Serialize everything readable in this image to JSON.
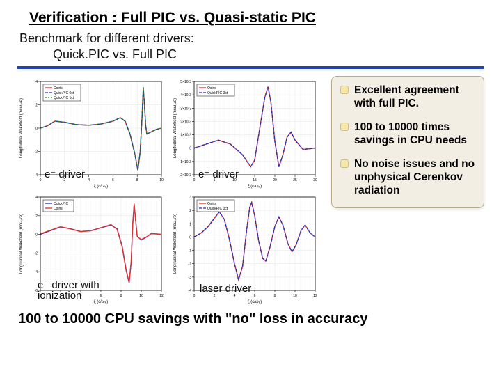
{
  "title": "Verification : Full PIC vs. Quasi-static PIC",
  "subtitle_line1": "Benchmark for different drivers:",
  "subtitle_line2": "Quick.PIC vs. Full PIC",
  "footer": "100 to 10000 CPU savings with \"no\" loss in accuracy",
  "bullets": {
    "b1": "Excellent agreement with full PIC.",
    "b2": "100 to 10000 times savings in CPU needs",
    "b3": "No noise issues and no unphysical Cerenkov radiation"
  },
  "chart_labels": {
    "c1": "e⁻ driver",
    "c2": "e⁺ driver",
    "c3": "e⁻ driver with ionization",
    "c4": "laser driver"
  },
  "colors": {
    "osiris": "#e03030",
    "quickpic": "#2030c0",
    "quickpic_alt": "#108030",
    "plot_bg": "#ffffff",
    "grid": "#e5e5e5"
  },
  "axes_common": {
    "title_fontsize": 6,
    "tick_fontsize": 5,
    "xlabel": "ξ (c/ωₚ)",
    "ylabel": "Longitudinal Wakefield (mcωₚ/e)"
  },
  "chart1": {
    "xlim": [
      0,
      10
    ],
    "ylim": [
      -4,
      4
    ],
    "xticks": [
      0,
      2,
      4,
      6,
      8,
      10
    ],
    "yticks": [
      -4,
      -2,
      0,
      2,
      4
    ],
    "legend": [
      "Osiris",
      "QuickPIC 0ct",
      "QuickPIC 1ct"
    ],
    "series": [
      {
        "color": "#e03030",
        "dash": "",
        "pts": [
          [
            0,
            0
          ],
          [
            0.6,
            0.2
          ],
          [
            1.2,
            0.6
          ],
          [
            2.0,
            0.5
          ],
          [
            3.0,
            0.3
          ],
          [
            4.0,
            0.25
          ],
          [
            5.0,
            0.35
          ],
          [
            6.0,
            0.6
          ],
          [
            6.6,
            0.9
          ],
          [
            7.0,
            0.6
          ],
          [
            7.4,
            -0.5
          ],
          [
            7.8,
            -2.2
          ],
          [
            8.05,
            -3.6
          ],
          [
            8.25,
            -2.0
          ],
          [
            8.4,
            1.0
          ],
          [
            8.5,
            3.5
          ],
          [
            8.6,
            2.0
          ],
          [
            8.7,
            0.2
          ],
          [
            8.8,
            -0.5
          ],
          [
            9.2,
            -0.3
          ],
          [
            9.6,
            -0.1
          ],
          [
            10,
            0
          ]
        ]
      },
      {
        "color": "#2030c0",
        "dash": "4 2",
        "pts": [
          [
            0,
            0
          ],
          [
            0.6,
            0.2
          ],
          [
            1.2,
            0.6
          ],
          [
            2.0,
            0.5
          ],
          [
            3.0,
            0.3
          ],
          [
            4.0,
            0.25
          ],
          [
            5.0,
            0.35
          ],
          [
            6.0,
            0.6
          ],
          [
            6.6,
            0.9
          ],
          [
            7.0,
            0.6
          ],
          [
            7.4,
            -0.5
          ],
          [
            7.8,
            -2.2
          ],
          [
            8.05,
            -3.6
          ],
          [
            8.25,
            -2.0
          ],
          [
            8.4,
            1.0
          ],
          [
            8.5,
            3.5
          ],
          [
            8.6,
            2.0
          ],
          [
            8.7,
            0.2
          ],
          [
            8.8,
            -0.5
          ],
          [
            9.2,
            -0.3
          ],
          [
            9.6,
            -0.1
          ],
          [
            10,
            0
          ]
        ]
      },
      {
        "color": "#108030",
        "dash": "2 2",
        "pts": [
          [
            0,
            0
          ],
          [
            0.6,
            0.2
          ],
          [
            1.2,
            0.6
          ],
          [
            2.0,
            0.5
          ],
          [
            3.0,
            0.3
          ],
          [
            4.0,
            0.25
          ],
          [
            5.0,
            0.35
          ],
          [
            6.0,
            0.6
          ],
          [
            6.6,
            0.9
          ],
          [
            7.0,
            0.6
          ],
          [
            7.4,
            -0.5
          ],
          [
            7.8,
            -2.2
          ],
          [
            8.05,
            -3.6
          ],
          [
            8.25,
            -2.0
          ],
          [
            8.4,
            1.0
          ],
          [
            8.5,
            3.5
          ],
          [
            8.6,
            2.0
          ],
          [
            8.7,
            0.2
          ],
          [
            8.8,
            -0.5
          ],
          [
            9.2,
            -0.3
          ],
          [
            9.6,
            -0.1
          ],
          [
            10,
            0
          ]
        ]
      }
    ]
  },
  "chart2": {
    "xlim": [
      0,
      30
    ],
    "ylim": [
      -0.002,
      0.005
    ],
    "xticks": [
      0,
      5,
      10,
      15,
      20,
      25,
      30
    ],
    "yticks": [
      -0.002,
      -0.001,
      0,
      0.001,
      0.002,
      0.003,
      0.004,
      0.005
    ],
    "legend": [
      "Osiris",
      "QuickPIC 0ct"
    ],
    "series": [
      {
        "color": "#e03030",
        "dash": "",
        "pts": [
          [
            0,
            0
          ],
          [
            3,
            0.0003
          ],
          [
            6,
            0.0006
          ],
          [
            9,
            0.0003
          ],
          [
            12,
            -0.0005
          ],
          [
            14,
            -0.0014
          ],
          [
            15,
            -0.0009
          ],
          [
            16,
            0.001
          ],
          [
            17.5,
            0.0038
          ],
          [
            18.3,
            0.0046
          ],
          [
            19,
            0.0035
          ],
          [
            20,
            0.0005
          ],
          [
            21,
            -0.0014
          ],
          [
            22,
            -0.0005
          ],
          [
            23,
            0.0008
          ],
          [
            24,
            0.0012
          ],
          [
            25,
            0.0006
          ],
          [
            27,
            -0.0001
          ],
          [
            30,
            0
          ]
        ]
      },
      {
        "color": "#2030c0",
        "dash": "4 2",
        "pts": [
          [
            0,
            0
          ],
          [
            3,
            0.0003
          ],
          [
            6,
            0.0006
          ],
          [
            9,
            0.0003
          ],
          [
            12,
            -0.0005
          ],
          [
            14,
            -0.0014
          ],
          [
            15,
            -0.0009
          ],
          [
            16,
            0.001
          ],
          [
            17.5,
            0.0038
          ],
          [
            18.3,
            0.0046
          ],
          [
            19,
            0.0035
          ],
          [
            20,
            0.0005
          ],
          [
            21,
            -0.0014
          ],
          [
            22,
            -0.0005
          ],
          [
            23,
            0.0008
          ],
          [
            24,
            0.0012
          ],
          [
            25,
            0.0006
          ],
          [
            27,
            -0.0001
          ],
          [
            30,
            0
          ]
        ]
      }
    ]
  },
  "chart3": {
    "xlim": [
      0,
      12
    ],
    "ylim": [
      -6,
      4
    ],
    "xticks": [
      0,
      2,
      4,
      6,
      8,
      10,
      12
    ],
    "yticks": [
      -6,
      -4,
      -2,
      0,
      2,
      4
    ],
    "legend": [
      "QuickPIC",
      "Osiris"
    ],
    "series": [
      {
        "color": "#2030c0",
        "dash": "",
        "pts": [
          [
            0,
            0
          ],
          [
            1,
            0.4
          ],
          [
            2,
            0.8
          ],
          [
            3,
            0.6
          ],
          [
            4,
            0.3
          ],
          [
            5,
            0.4
          ],
          [
            6,
            0.7
          ],
          [
            7,
            1.0
          ],
          [
            7.6,
            0.6
          ],
          [
            8.1,
            -1.2
          ],
          [
            8.5,
            -3.8
          ],
          [
            8.8,
            -5.2
          ],
          [
            9.0,
            -3.0
          ],
          [
            9.15,
            1.0
          ],
          [
            9.3,
            3.2
          ],
          [
            9.45,
            1.5
          ],
          [
            9.6,
            -0.2
          ],
          [
            10,
            -0.6
          ],
          [
            10.5,
            -0.3
          ],
          [
            11,
            0.1
          ],
          [
            12,
            0
          ]
        ]
      },
      {
        "color": "#e03030",
        "dash": "",
        "pts": [
          [
            0,
            0.05
          ],
          [
            1,
            0.45
          ],
          [
            2,
            0.82
          ],
          [
            3,
            0.58
          ],
          [
            4,
            0.28
          ],
          [
            5,
            0.38
          ],
          [
            6,
            0.72
          ],
          [
            7,
            1.05
          ],
          [
            7.6,
            0.55
          ],
          [
            8.1,
            -1.3
          ],
          [
            8.5,
            -3.9
          ],
          [
            8.8,
            -5.1
          ],
          [
            9.0,
            -2.9
          ],
          [
            9.15,
            1.1
          ],
          [
            9.3,
            3.3
          ],
          [
            9.45,
            1.4
          ],
          [
            9.6,
            -0.25
          ],
          [
            10,
            -0.55
          ],
          [
            10.5,
            -0.28
          ],
          [
            11,
            0.08
          ],
          [
            12,
            0
          ]
        ]
      }
    ]
  },
  "chart4": {
    "xlim": [
      0,
      12
    ],
    "ylim": [
      -4,
      3
    ],
    "xticks": [
      0,
      2,
      4,
      6,
      8,
      10,
      12
    ],
    "yticks": [
      -4,
      -3,
      -2,
      -1,
      0,
      1,
      2,
      3
    ],
    "legend": [
      "Osiris",
      "QuickPIC 0ct"
    ],
    "series": [
      {
        "color": "#e03030",
        "dash": "",
        "pts": [
          [
            0,
            0
          ],
          [
            0.7,
            0.3
          ],
          [
            1.4,
            0.8
          ],
          [
            2.0,
            1.4
          ],
          [
            2.5,
            1.9
          ],
          [
            3.0,
            1.3
          ],
          [
            3.5,
            -0.2
          ],
          [
            4.0,
            -2.0
          ],
          [
            4.4,
            -3.2
          ],
          [
            4.8,
            -2.2
          ],
          [
            5.2,
            0.5
          ],
          [
            5.5,
            2.2
          ],
          [
            5.7,
            2.6
          ],
          [
            6.0,
            1.6
          ],
          [
            6.4,
            -0.3
          ],
          [
            6.8,
            -1.6
          ],
          [
            7.1,
            -1.8
          ],
          [
            7.5,
            -0.8
          ],
          [
            8.0,
            0.8
          ],
          [
            8.4,
            1.5
          ],
          [
            8.8,
            0.9
          ],
          [
            9.3,
            -0.5
          ],
          [
            9.7,
            -1.1
          ],
          [
            10.1,
            -0.6
          ],
          [
            10.6,
            0.5
          ],
          [
            11.0,
            0.9
          ],
          [
            11.5,
            0.3
          ],
          [
            12,
            0
          ]
        ]
      },
      {
        "color": "#2030c0",
        "dash": "4 2",
        "pts": [
          [
            0,
            0
          ],
          [
            0.7,
            0.3
          ],
          [
            1.4,
            0.8
          ],
          [
            2.0,
            1.4
          ],
          [
            2.5,
            1.9
          ],
          [
            3.0,
            1.3
          ],
          [
            3.5,
            -0.2
          ],
          [
            4.0,
            -2.0
          ],
          [
            4.4,
            -3.2
          ],
          [
            4.8,
            -2.2
          ],
          [
            5.2,
            0.5
          ],
          [
            5.5,
            2.2
          ],
          [
            5.7,
            2.6
          ],
          [
            6.0,
            1.6
          ],
          [
            6.4,
            -0.3
          ],
          [
            6.8,
            -1.6
          ],
          [
            7.1,
            -1.8
          ],
          [
            7.5,
            -0.8
          ],
          [
            8.0,
            0.8
          ],
          [
            8.4,
            1.5
          ],
          [
            8.8,
            0.9
          ],
          [
            9.3,
            -0.5
          ],
          [
            9.7,
            -1.1
          ],
          [
            10.1,
            -0.6
          ],
          [
            10.6,
            0.5
          ],
          [
            11.0,
            0.9
          ],
          [
            11.5,
            0.3
          ],
          [
            12,
            0
          ]
        ]
      }
    ]
  }
}
